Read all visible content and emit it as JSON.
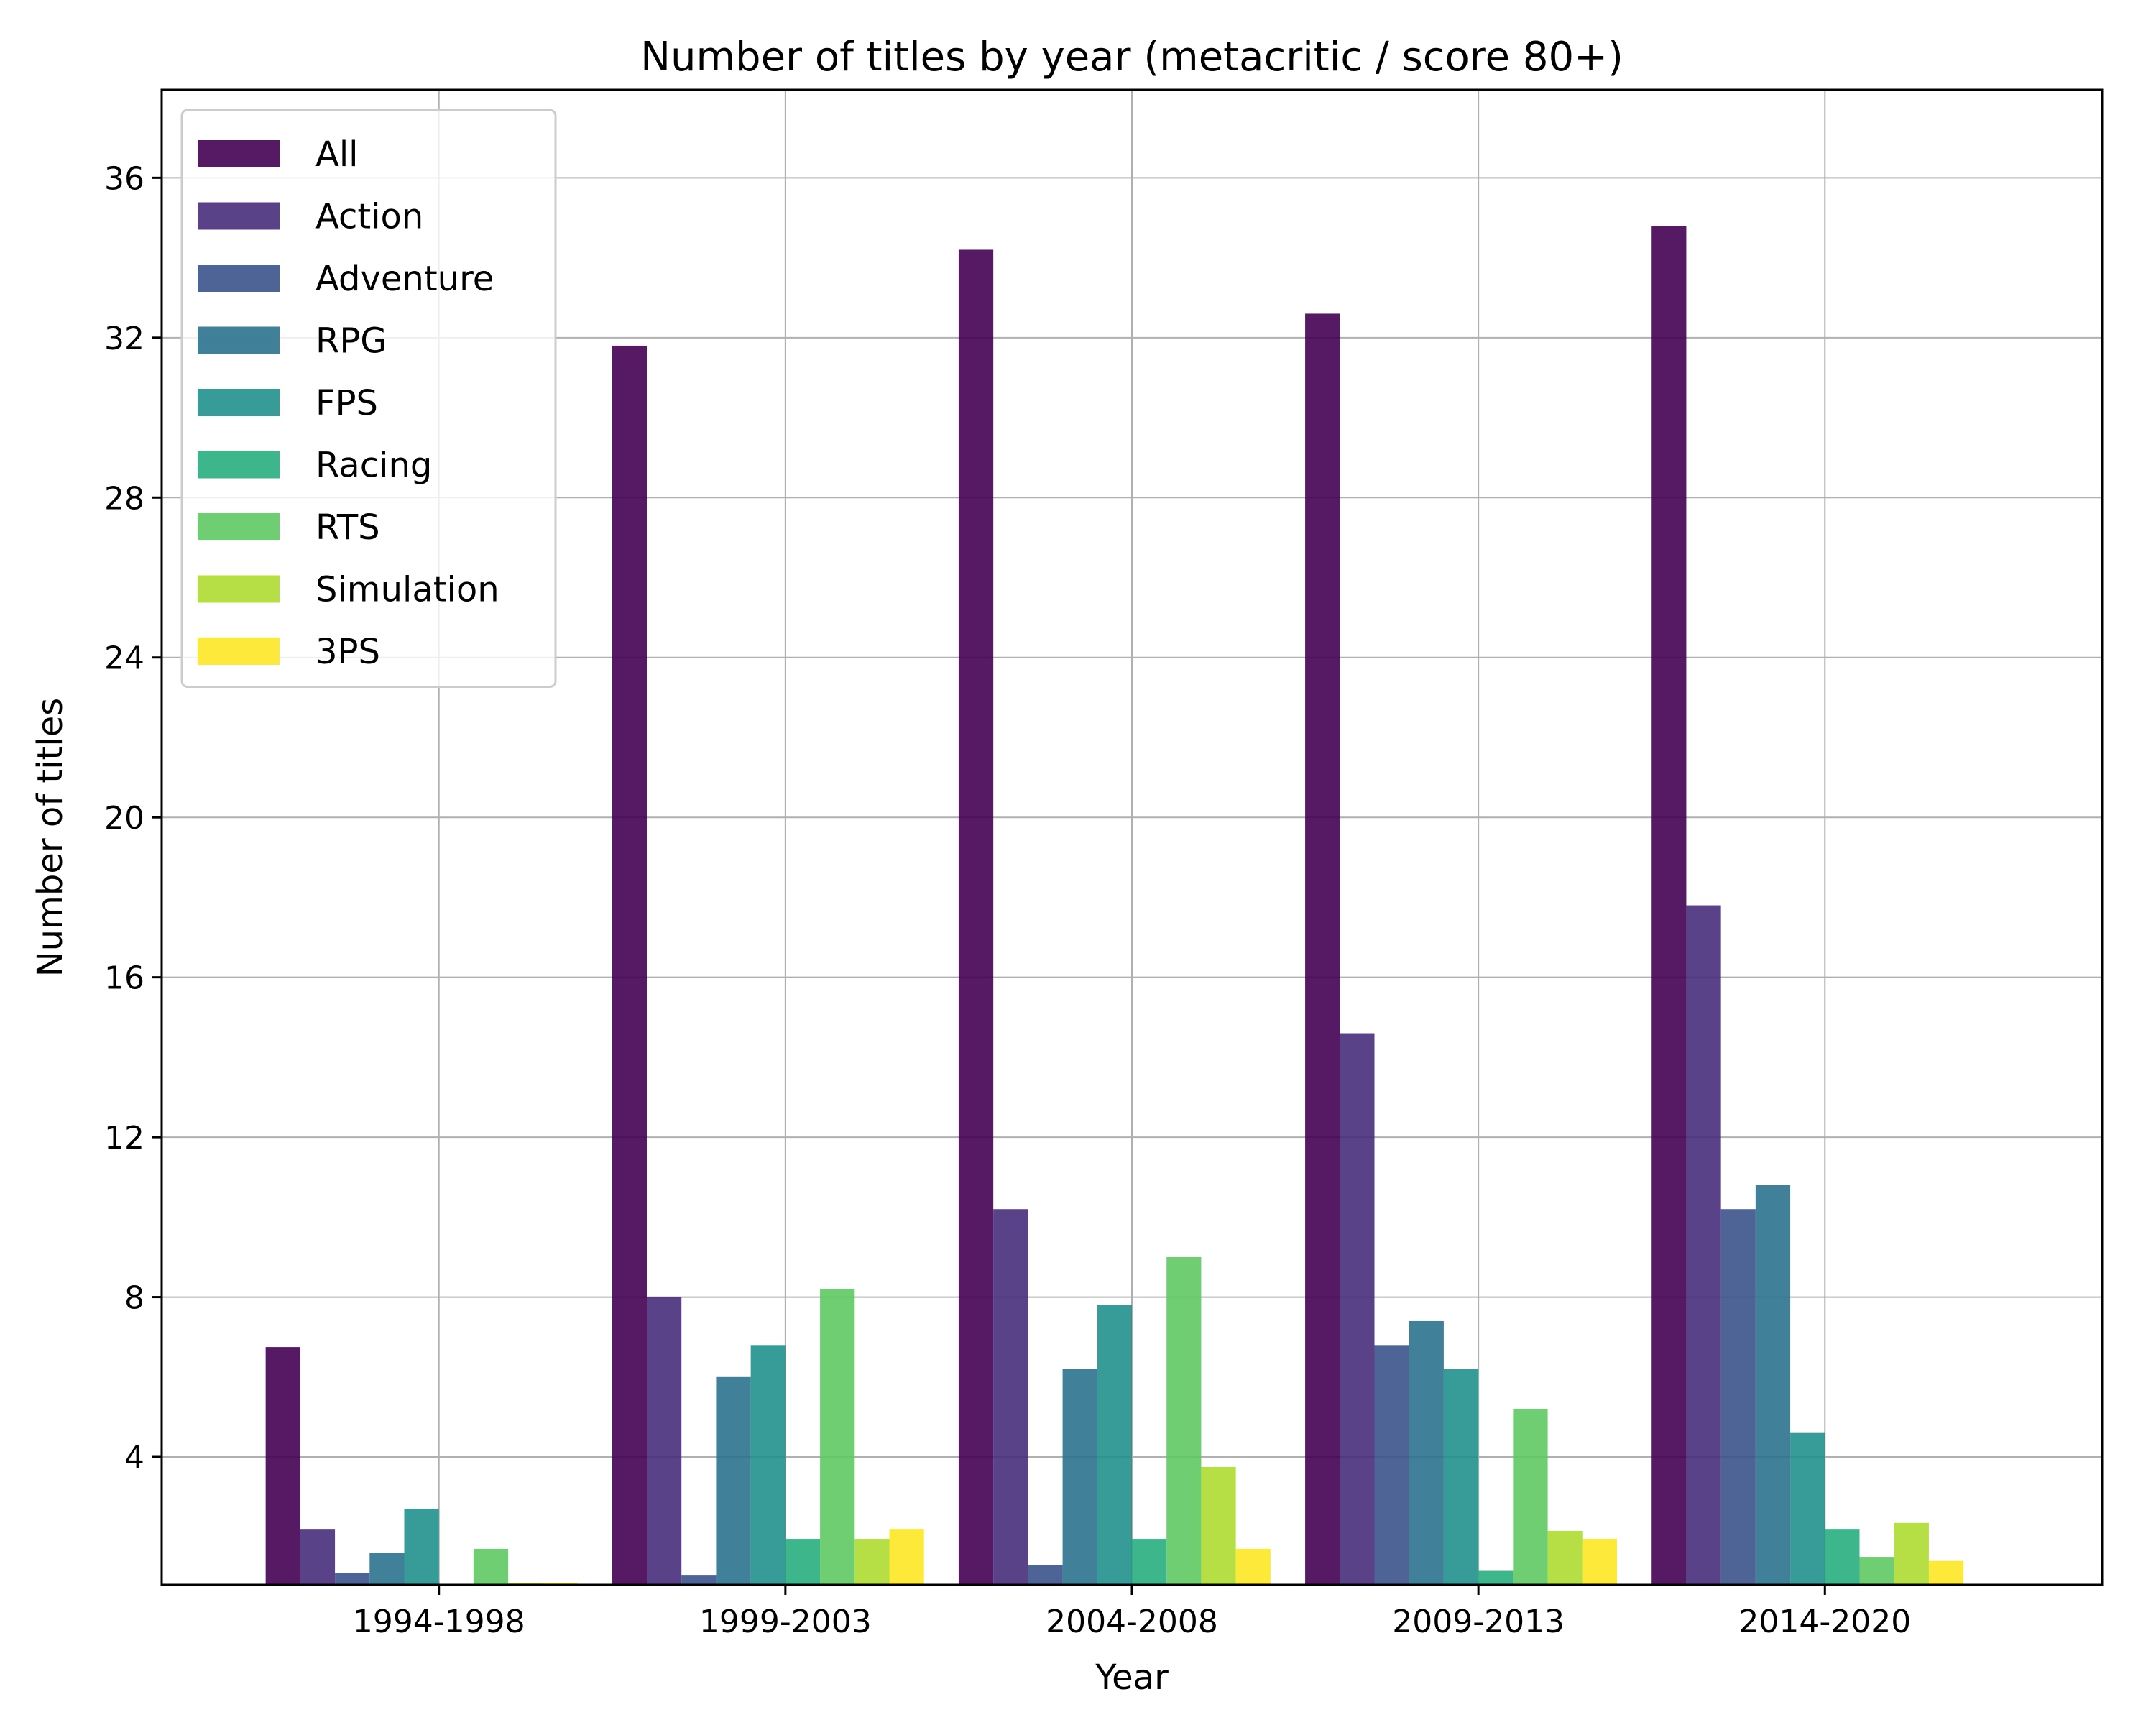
{
  "chart_data": {
    "type": "bar",
    "title": "Number of titles by year (metacritic / score 80+)",
    "xlabel": "Year",
    "ylabel": "Number of titles",
    "categories": [
      "1994-1998",
      "1999-2003",
      "2004-2008",
      "2009-2013",
      "2014-2020"
    ],
    "ylim": [
      0.8,
      38.2
    ],
    "yticks": [
      4,
      8,
      12,
      16,
      20,
      24,
      28,
      32,
      36
    ],
    "grid": true,
    "legend_position": "top-left",
    "series": [
      {
        "name": "All",
        "color": "#440154",
        "values": [
          6.75,
          31.8,
          34.2,
          32.6,
          34.8
        ]
      },
      {
        "name": "Action",
        "color": "#472d7b",
        "values": [
          2.2,
          8.0,
          10.2,
          14.6,
          17.8
        ]
      },
      {
        "name": "Adventure",
        "color": "#3b528b",
        "values": [
          1.1,
          1.05,
          1.3,
          6.8,
          10.2
        ]
      },
      {
        "name": "RPG",
        "color": "#2c728e",
        "values": [
          1.6,
          6.0,
          6.2,
          7.4,
          10.8
        ]
      },
      {
        "name": "FPS",
        "color": "#21918c",
        "values": [
          2.7,
          6.8,
          7.8,
          6.2,
          4.6
        ]
      },
      {
        "name": "Racing",
        "color": "#28ae80",
        "values": [
          0.7,
          1.95,
          1.95,
          1.15,
          2.2
        ]
      },
      {
        "name": "RTS",
        "color": "#5ec962",
        "values": [
          1.7,
          8.2,
          9.0,
          5.2,
          1.5
        ]
      },
      {
        "name": "Simulation",
        "color": "#addc30",
        "values": [
          0.85,
          1.95,
          3.75,
          2.15,
          2.35
        ]
      },
      {
        "name": "3PS",
        "color": "#fde725",
        "values": [
          0.85,
          2.2,
          1.7,
          1.95,
          1.4
        ]
      }
    ]
  }
}
